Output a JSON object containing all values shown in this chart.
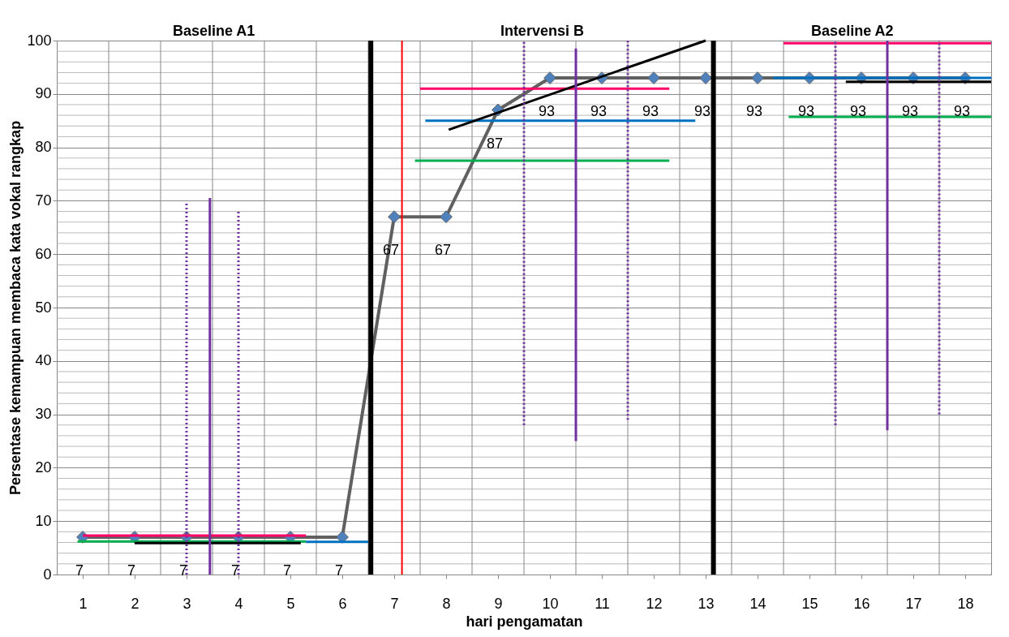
{
  "chart_data": {
    "type": "line",
    "xlabel": "hari pengamatan",
    "ylabel": "Persentase  kemampuan membaca kata vokal rangkap",
    "xlim": [
      0.5,
      18.5
    ],
    "xticks": [
      1,
      2,
      3,
      4,
      5,
      6,
      7,
      8,
      9,
      10,
      11,
      12,
      13,
      14,
      15,
      16,
      17,
      18
    ],
    "ylim": [
      0,
      100
    ],
    "yticks": [
      0,
      10,
      20,
      30,
      40,
      50,
      60,
      70,
      80,
      90,
      100
    ],
    "grid": true,
    "legend": false,
    "marker": "diamond",
    "series": [
      {
        "color": "#606060",
        "x": [
          1,
          2,
          3,
          4,
          5,
          6,
          7,
          8,
          9,
          10,
          11,
          12,
          13,
          14,
          15,
          16,
          17,
          18
        ],
        "values": [
          7,
          7,
          7,
          7,
          7,
          7,
          67,
          67,
          87,
          93,
          93,
          93,
          93,
          93,
          93,
          93,
          93,
          93
        ],
        "value_labels": [
          "7",
          "7",
          "7",
          "7",
          "7",
          "7",
          "67",
          "67",
          "87",
          "93",
          "93",
          "93",
          "93",
          "93",
          "93",
          "93",
          "93",
          "93"
        ],
        "colors": [
          "#4f81bd",
          "#4f81bd",
          "#4f81bd",
          "#4f81bd",
          "#4f81bd",
          "#4f81bd",
          "#4f81bd",
          "#4f81bd",
          "#4f81bd",
          "#4f81bd",
          "#4f81bd",
          "#4f81bd",
          "#4f81bd",
          "#4f81bd",
          "#4f81bd",
          "#4f81bd",
          "#4f81bd",
          "#4f81bd"
        ]
      },
      {
        "type": "line",
        "marker": "none",
        "color": "#ff0066",
        "x": [
          1,
          5.3
        ],
        "values": [
          7.3,
          7.3
        ]
      },
      {
        "type": "line",
        "marker": "none",
        "color": "#00b050",
        "x": [
          0.9,
          5.3
        ],
        "values": [
          6.2,
          6.2
        ]
      },
      {
        "type": "line",
        "marker": "none",
        "color": "#000000",
        "x": [
          2,
          5.2
        ],
        "values": [
          5.9,
          5.9
        ]
      },
      {
        "type": "line",
        "marker": "none",
        "color": "#0070c0",
        "x": [
          5.3,
          6.5
        ],
        "values": [
          6.1,
          6.1
        ]
      },
      {
        "type": "line",
        "marker": "none",
        "color": "#ff0066",
        "x": [
          7.5,
          12.3
        ],
        "values": [
          91,
          91
        ]
      },
      {
        "type": "line",
        "marker": "none",
        "color": "#0070c0",
        "x": [
          7.6,
          12.8
        ],
        "values": [
          85,
          85
        ]
      },
      {
        "type": "line",
        "marker": "none",
        "color": "#00b050",
        "x": [
          7.4,
          12.3
        ],
        "values": [
          77.5,
          77.5
        ]
      },
      {
        "type": "line",
        "marker": "none",
        "color": "#000000",
        "x": [
          8.05,
          13.0
        ],
        "values": [
          83.3,
          100
        ]
      },
      {
        "type": "line",
        "marker": "none",
        "color": "#ff0066",
        "x": [
          14.5,
          18.5
        ],
        "values": [
          99.5,
          99.5
        ]
      },
      {
        "type": "line",
        "marker": "none",
        "color": "#0070c0",
        "x": [
          14.3,
          18.5
        ],
        "values": [
          93,
          93
        ]
      },
      {
        "type": "line",
        "marker": "none",
        "color": "#000000",
        "x": [
          15.7,
          18.5
        ],
        "values": [
          92.3,
          92.3
        ]
      },
      {
        "type": "line",
        "marker": "none",
        "color": "#00b050",
        "x": [
          14.6,
          18.5
        ],
        "values": [
          85.7,
          85.7
        ]
      },
      {
        "type": "line",
        "marker": "none",
        "color": "#7030a0",
        "x": [
          3.45,
          3.45
        ],
        "values": [
          0,
          70.5
        ]
      },
      {
        "type": "line",
        "marker": "none",
        "color": "#7030a0",
        "x": [
          10.5,
          10.5
        ],
        "values": [
          25,
          98.5
        ]
      },
      {
        "type": "line",
        "marker": "none",
        "color": "#7030a0",
        "x": [
          16.5,
          16.5
        ],
        "values": [
          27,
          100
        ]
      },
      {
        "type": "line",
        "marker": "none",
        "line_style": "dotted",
        "color": "#7030a0",
        "x": [
          3,
          3
        ],
        "values": [
          0,
          69.5
        ]
      },
      {
        "type": "line",
        "marker": "none",
        "line_style": "dotted",
        "color": "#7030a0",
        "x": [
          4,
          4
        ],
        "values": [
          0,
          68
        ]
      },
      {
        "type": "line",
        "marker": "none",
        "line_style": "dotted",
        "color": "#7030a0",
        "x": [
          9.5,
          9.5
        ],
        "values": [
          28,
          100
        ]
      },
      {
        "type": "line",
        "marker": "none",
        "line_style": "dotted",
        "color": "#7030a0",
        "x": [
          11.5,
          11.5
        ],
        "values": [
          29,
          100
        ]
      },
      {
        "type": "line",
        "marker": "none",
        "line_style": "dotted",
        "color": "#7030a0",
        "x": [
          15.5,
          15.5
        ],
        "values": [
          28,
          100
        ]
      },
      {
        "type": "line",
        "marker": "none",
        "line_style": "dotted",
        "color": "#7030a0",
        "x": [
          17.5,
          17.5
        ],
        "values": [
          30,
          100
        ]
      }
    ],
    "ref_lines": [
      {
        "axis": "x",
        "value": 6.55,
        "color": "#000000"
      },
      {
        "axis": "x",
        "value": 13.15,
        "color": "#000000"
      },
      {
        "axis": "x",
        "value": 7.15,
        "color": "#ff0000"
      }
    ],
    "annotations": [
      "Baseline A1",
      "Intervensi B",
      "Baseline A2"
    ]
  }
}
